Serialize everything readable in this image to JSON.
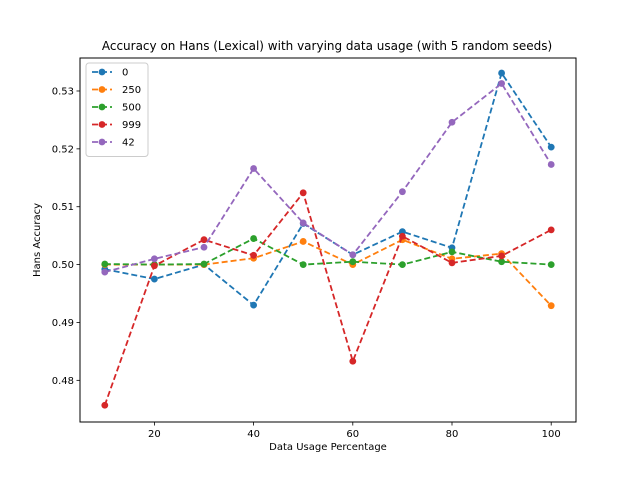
{
  "chart_data": {
    "type": "line",
    "title": "Accuracy on Hans (Lexical) with varying data usage (with 5 random seeds)",
    "xlabel": "Data Usage Percentage",
    "ylabel": "Hans Accuracy",
    "xlim": [
      5,
      105
    ],
    "ylim": [
      0.4728,
      0.5357
    ],
    "xticks": [
      20,
      40,
      60,
      80,
      100
    ],
    "xtick_labels": [
      "20",
      "40",
      "60",
      "80",
      "100"
    ],
    "yticks": [
      0.48,
      0.49,
      0.5,
      0.51,
      0.52,
      0.53
    ],
    "ytick_labels": [
      "0.48",
      "0.49",
      "0.50",
      "0.51",
      "0.52",
      "0.53"
    ],
    "grid": false,
    "legend_placement": "upper-left",
    "line_style": "dashed",
    "marker": "circle",
    "x": [
      10,
      20,
      30,
      40,
      50,
      60,
      70,
      80,
      90,
      100
    ],
    "series": [
      {
        "name": "0",
        "color": "#1f77b4",
        "values": [
          0.4992,
          0.4975,
          0.5,
          0.493,
          0.5071,
          0.5017,
          0.5057,
          0.5029,
          0.5331,
          0.5203
        ]
      },
      {
        "name": "250",
        "color": "#ff7f0e",
        "values": [
          0.5,
          0.5,
          0.5,
          0.5011,
          0.504,
          0.5,
          0.5043,
          0.501,
          0.5019,
          0.4929
        ]
      },
      {
        "name": "500",
        "color": "#2ca02c",
        "values": [
          0.5001,
          0.5,
          0.5001,
          0.5045,
          0.5,
          0.5005,
          0.5,
          0.5022,
          0.5005,
          0.5
        ]
      },
      {
        "name": "999",
        "color": "#d62728",
        "values": [
          0.4757,
          0.4998,
          0.5043,
          0.5016,
          0.5124,
          0.4833,
          0.5049,
          0.5003,
          0.5015,
          0.506
        ]
      },
      {
        "name": "42",
        "color": "#9467bd",
        "values": [
          0.4987,
          0.501,
          0.503,
          0.5166,
          0.5072,
          0.5017,
          0.5126,
          0.5246,
          0.5313,
          0.5173
        ]
      }
    ]
  }
}
